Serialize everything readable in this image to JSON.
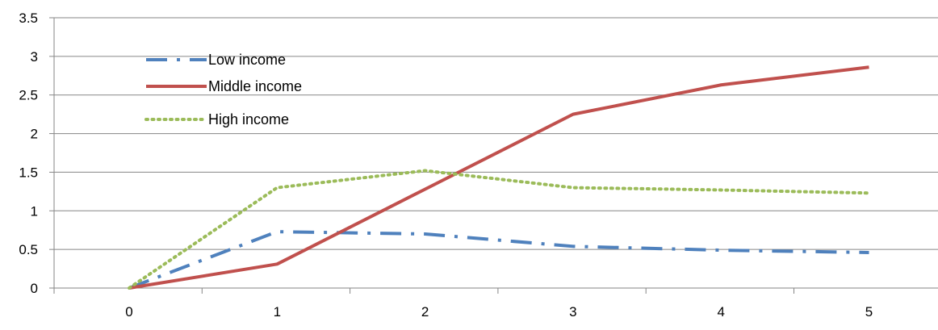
{
  "chart_data": {
    "type": "line",
    "title": "",
    "xlabel": "",
    "ylabel": "",
    "x": [
      0,
      1,
      2,
      3,
      4,
      5
    ],
    "xticks": [
      "0",
      "1",
      "2",
      "3",
      "4",
      "5"
    ],
    "yticks": [
      "0",
      "0.5",
      "1",
      "1.5",
      "2",
      "2.5",
      "3",
      "3.5"
    ],
    "ylim": [
      0,
      3.5
    ],
    "grid": "horizontal major gridlines",
    "legend_position": "top-left inside plot",
    "series": [
      {
        "name": "Low income",
        "color": "#4F81BD",
        "style": "long-dash-dot",
        "values": [
          0,
          0.73,
          0.7,
          0.54,
          0.49,
          0.46
        ]
      },
      {
        "name": "Middle income",
        "color": "#C0504D",
        "style": "solid",
        "values": [
          0,
          0.31,
          1.28,
          2.25,
          2.63,
          2.86
        ]
      },
      {
        "name": "High income",
        "color": "#9BBB59",
        "style": "dotted",
        "values": [
          0,
          1.3,
          1.52,
          1.3,
          1.27,
          1.23
        ]
      }
    ]
  }
}
